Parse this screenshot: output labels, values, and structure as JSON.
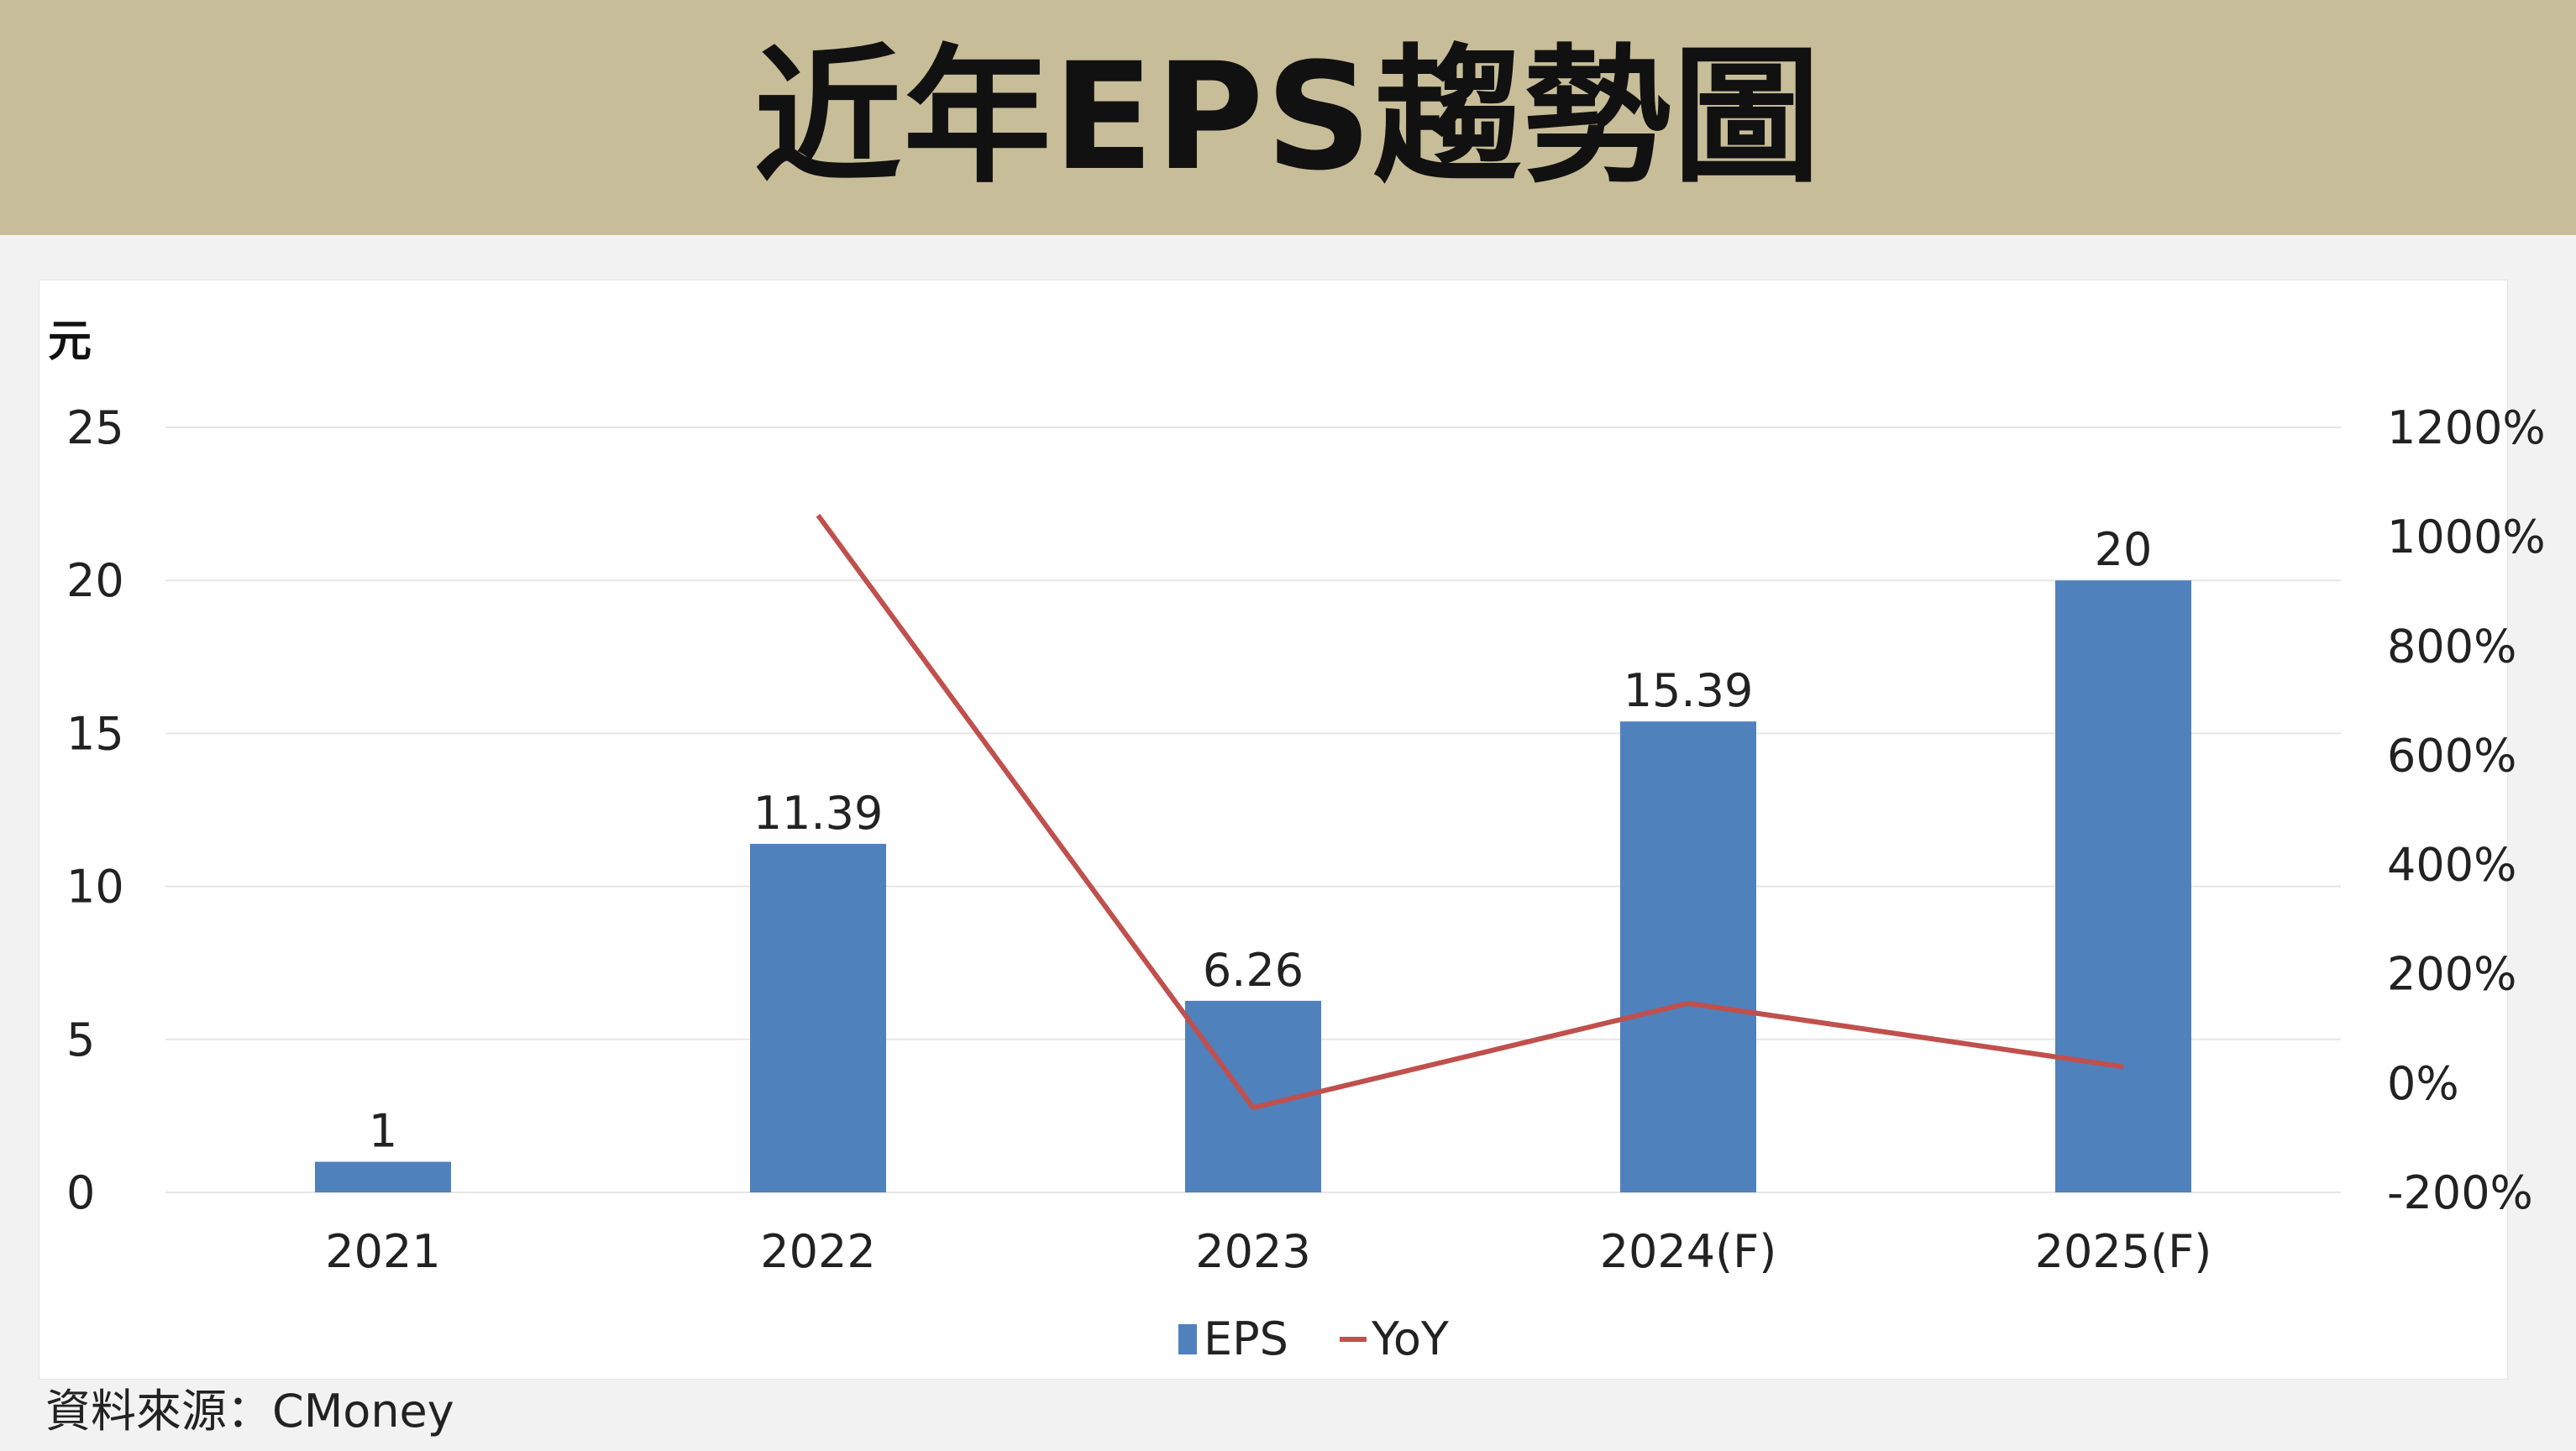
{
  "header": {
    "title": "近年EPS趨勢圖"
  },
  "footer": {
    "source": "資料來源：CMoney"
  },
  "colors": {
    "header_bg": "#c7bd98",
    "eps_bar": "#4f81bd",
    "yoy_line": "#c0504d",
    "grid": "#e6e6e6"
  },
  "chart_data": {
    "type": "bar",
    "categories": [
      "2021",
      "2022",
      "2023",
      "2024(F)",
      "2025(F)"
    ],
    "series": [
      {
        "name": "EPS",
        "type": "bar",
        "axis": "left",
        "values": [
          1,
          11.39,
          6.26,
          15.39,
          20
        ],
        "labels": [
          "1",
          "11.39",
          "6.26",
          "15.39",
          "20"
        ]
      },
      {
        "name": "YoY",
        "type": "line",
        "axis": "right",
        "values": [
          null,
          1039,
          -45,
          146,
          30
        ]
      }
    ],
    "y_left": {
      "unit": "元",
      "min": 0,
      "max": 25,
      "ticks": [
        "0",
        "5",
        "10",
        "15",
        "20",
        "25"
      ]
    },
    "y_right": {
      "min": -200,
      "max": 1200,
      "ticks": [
        "-200%",
        "0%",
        "200%",
        "400%",
        "600%",
        "800%",
        "1000%",
        "1200%"
      ]
    },
    "grid": true,
    "legend": {
      "position": "bottom",
      "entries": [
        "EPS",
        "YoY"
      ]
    }
  }
}
